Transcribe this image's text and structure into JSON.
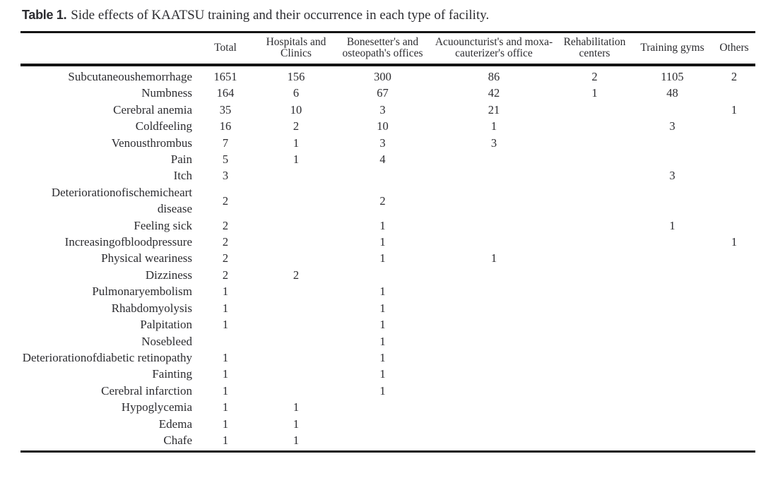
{
  "caption": {
    "label": "Table 1.",
    "text": "Side effects of KAATSU training and their occurrence in each type of facility."
  },
  "table": {
    "columns": [
      "",
      "Total",
      "Hospitals and Clinics",
      "Bonesetter's and osteopath's offices",
      "Acuouncturist's and moxa-cauterizer's office",
      "Rehabilitation centers",
      "Training gyms",
      "Others"
    ],
    "rows": [
      {
        "label": "Subcutaneoushemorrhage",
        "values": [
          "1651",
          "156",
          "300",
          "86",
          "2",
          "1105",
          "2"
        ]
      },
      {
        "label": "Numbness",
        "values": [
          "164",
          "6",
          "67",
          "42",
          "1",
          "48",
          ""
        ]
      },
      {
        "label": "Cerebral anemia",
        "values": [
          "35",
          "10",
          "3",
          "21",
          "",
          "",
          "1"
        ]
      },
      {
        "label": "Coldfeeling",
        "values": [
          "16",
          "2",
          "10",
          "1",
          "",
          "3",
          ""
        ]
      },
      {
        "label": "Venousthrombus",
        "values": [
          "7",
          "1",
          "3",
          "3",
          "",
          "",
          ""
        ]
      },
      {
        "label": "Pain",
        "values": [
          "5",
          "1",
          "4",
          "",
          "",
          "",
          ""
        ]
      },
      {
        "label": "Itch",
        "values": [
          "3",
          "",
          "",
          "",
          "",
          "3",
          ""
        ]
      },
      {
        "label": "Deteriorationofischemicheart disease",
        "values": [
          "2",
          "",
          "2",
          "",
          "",
          "",
          ""
        ]
      },
      {
        "label": "Feeling sick",
        "values": [
          "2",
          "",
          "1",
          "",
          "",
          "1",
          ""
        ]
      },
      {
        "label": "Increasingofbloodpressure",
        "values": [
          "2",
          "",
          "1",
          "",
          "",
          "",
          "1"
        ]
      },
      {
        "label": "Physical weariness",
        "values": [
          "2",
          "",
          "1",
          "1",
          "",
          "",
          ""
        ]
      },
      {
        "label": "Dizziness",
        "values": [
          "2",
          "2",
          "",
          "",
          "",
          "",
          ""
        ]
      },
      {
        "label": "Pulmonaryembolism",
        "values": [
          "1",
          "",
          "1",
          "",
          "",
          "",
          ""
        ]
      },
      {
        "label": "Rhabdomyolysis",
        "values": [
          "1",
          "",
          "1",
          "",
          "",
          "",
          ""
        ]
      },
      {
        "label": "Palpitation",
        "values": [
          "1",
          "",
          "1",
          "",
          "",
          "",
          ""
        ]
      },
      {
        "label": "Nosebleed",
        "values": [
          "",
          "",
          "1",
          "",
          "",
          "",
          ""
        ]
      },
      {
        "label": "Deteriorationofdiabetic retinopathy",
        "values": [
          "1",
          "",
          "1",
          "",
          "",
          "",
          ""
        ]
      },
      {
        "label": "Fainting",
        "values": [
          "1",
          "",
          "1",
          "",
          "",
          "",
          ""
        ]
      },
      {
        "label": "Cerebral infarction",
        "values": [
          "1",
          "",
          "1",
          "",
          "",
          "",
          ""
        ]
      },
      {
        "label": "Hypoglycemia",
        "values": [
          "1",
          "1",
          "",
          "",
          "",
          "",
          ""
        ]
      },
      {
        "label": "Edema",
        "values": [
          "1",
          "1",
          "",
          "",
          "",
          "",
          ""
        ]
      },
      {
        "label": "Chafe",
        "values": [
          "1",
          "1",
          "",
          "",
          "",
          "",
          ""
        ]
      }
    ]
  },
  "colors": {
    "text": "#2c2c30",
    "rule": "#141414",
    "background": "#ffffff"
  }
}
